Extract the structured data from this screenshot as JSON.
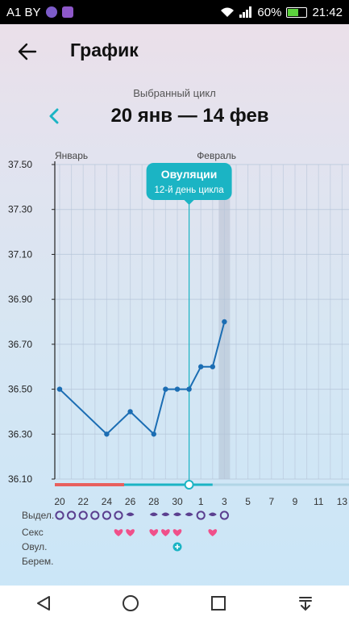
{
  "status_bar": {
    "carrier": "A1 BY",
    "battery_percent": "60%",
    "time": "21:42",
    "battery_level": 0.6
  },
  "header": {
    "title": "График",
    "back_icon": "arrow-left-icon"
  },
  "cycle": {
    "label": "Выбранный цикл",
    "range": "20 янв — 14 фев",
    "prev_icon": "chevron-left-icon"
  },
  "colors": {
    "accent": "#1bb4c4",
    "line": "#1b6db3",
    "period": "#e8605e",
    "heart": "#f0508a",
    "discharge": "#5b3f8f"
  },
  "chart_data": {
    "type": "line",
    "ylim": [
      36.1,
      37.5
    ],
    "y_ticks": [
      "37.50",
      "37.30",
      "37.10",
      "36.90",
      "36.70",
      "36.50",
      "36.30",
      "36.10"
    ],
    "month_labels": [
      "Январь",
      "Февраль"
    ],
    "x_ticks": [
      "20",
      "22",
      "24",
      "26",
      "28",
      "30",
      "1",
      "3",
      "5",
      "7",
      "9",
      "11",
      "13"
    ],
    "days": [
      "20",
      "21",
      "22",
      "23",
      "24",
      "25",
      "26",
      "27",
      "28",
      "29",
      "30",
      "31",
      "1",
      "2",
      "3",
      "4",
      "5",
      "6",
      "7",
      "8",
      "9",
      "10",
      "11",
      "12",
      "13",
      "14"
    ],
    "series": [
      {
        "points": [
          {
            "day": "20",
            "value": 36.5
          },
          {
            "day": "24",
            "value": 36.3
          },
          {
            "day": "26",
            "value": 36.4
          },
          {
            "day": "28",
            "value": 36.3
          },
          {
            "day": "29",
            "value": 36.5
          },
          {
            "day": "30",
            "value": 36.5
          },
          {
            "day": "31",
            "value": 36.5
          },
          {
            "day": "1",
            "value": 36.6
          },
          {
            "day": "2",
            "value": 36.6
          },
          {
            "day": "3",
            "value": 36.8
          }
        ]
      }
    ],
    "ovulation": {
      "day": "31",
      "title": "Овуляции",
      "subtitle": "12-й день цикла"
    },
    "highlight_day": "3",
    "period_days": [
      "20",
      "21",
      "22",
      "23",
      "24",
      "25"
    ],
    "rows": {
      "discharge": {
        "label": "Выдел.",
        "marks": [
          {
            "day": "20",
            "kind": "circle"
          },
          {
            "day": "21",
            "kind": "circle"
          },
          {
            "day": "22",
            "kind": "circle"
          },
          {
            "day": "23",
            "kind": "circle"
          },
          {
            "day": "24",
            "kind": "circle"
          },
          {
            "day": "25",
            "kind": "circle"
          },
          {
            "day": "26",
            "kind": "drop"
          },
          {
            "day": "28",
            "kind": "drop"
          },
          {
            "day": "29",
            "kind": "drop"
          },
          {
            "day": "30",
            "kind": "drop"
          },
          {
            "day": "31",
            "kind": "drop"
          },
          {
            "day": "1",
            "kind": "circle"
          },
          {
            "day": "2",
            "kind": "drop"
          },
          {
            "day": "3",
            "kind": "circle"
          }
        ]
      },
      "sex": {
        "label": "Секс",
        "days": [
          "25",
          "26",
          "28",
          "29",
          "30",
          "2"
        ]
      },
      "ovulation_test": {
        "label": "Овул.",
        "days": [
          "30"
        ]
      },
      "pregnancy": {
        "label": "Берем.",
        "days": []
      }
    }
  },
  "nav": {
    "back_icon": "triangle-back-icon",
    "home_icon": "circle-home-icon",
    "recents_icon": "square-recents-icon",
    "notifications_icon": "pull-down-icon"
  }
}
